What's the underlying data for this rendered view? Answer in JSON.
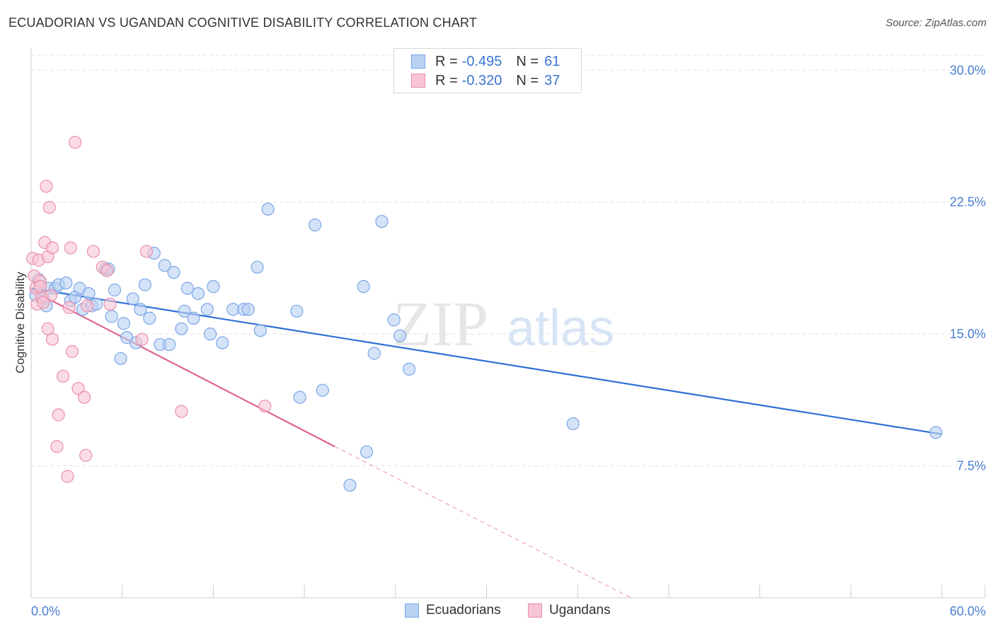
{
  "title": "ECUADORIAN VS UGANDAN COGNITIVE DISABILITY CORRELATION CHART",
  "source": "Source: ZipAtlas.com",
  "watermark": {
    "zip": "ZIP",
    "atlas": "atlas"
  },
  "legend": {
    "series1": {
      "r_label": "R =",
      "r_value": "-0.495",
      "n_label": "N =",
      "n_value": "61"
    },
    "series2": {
      "r_label": "R =",
      "r_value": "-0.320",
      "n_label": "N =",
      "n_value": "37"
    }
  },
  "bottom_legend": {
    "ecuadorians": "Ecuadorians",
    "ugandans": "Ugandans"
  },
  "colors": {
    "blue_fill": "#b9d1f3",
    "blue_stroke": "#7ba6e6",
    "blue_line": "#2e6fd6",
    "pink_fill": "#f8c4d3",
    "pink_stroke": "#ea8fab",
    "pink_line": "#e0638f",
    "grid": "#e3e3e3",
    "tick_text": "#4a7fd0"
  },
  "chart_data": {
    "type": "scatter",
    "title": "ECUADORIAN VS UGANDAN COGNITIVE DISABILITY CORRELATION CHART",
    "xlabel": "",
    "ylabel": "Cognitive Disability",
    "xlim": [
      0,
      60
    ],
    "ylim": [
      0,
      31.5
    ],
    "x_tick_labels": [
      "0.0%",
      "60.0%"
    ],
    "y_ticks": [
      7.5,
      15.0,
      22.5,
      30.0
    ],
    "y_tick_labels": [
      "7.5%",
      "15.0%",
      "22.5%",
      "30.0%"
    ],
    "series": [
      {
        "name": "Ecuadorians",
        "r": -0.495,
        "n": 61,
        "trend": {
          "x0": 0.0,
          "y0": 17.6,
          "x1": 60.0,
          "y1": 9.3
        },
        "points": [
          [
            0.3,
            17.2
          ],
          [
            0.5,
            18.1
          ],
          [
            0.8,
            17.0
          ],
          [
            1.0,
            16.6
          ],
          [
            1.2,
            17.6
          ],
          [
            1.6,
            17.6
          ],
          [
            1.8,
            17.8
          ],
          [
            2.3,
            17.9
          ],
          [
            2.6,
            16.9
          ],
          [
            2.9,
            17.1
          ],
          [
            3.2,
            17.6
          ],
          [
            3.4,
            16.4
          ],
          [
            3.8,
            17.3
          ],
          [
            4.0,
            16.6
          ],
          [
            4.3,
            16.7
          ],
          [
            4.9,
            18.7
          ],
          [
            5.1,
            18.7
          ],
          [
            5.3,
            16.0
          ],
          [
            5.5,
            17.5
          ],
          [
            5.9,
            13.6
          ],
          [
            6.1,
            15.6
          ],
          [
            6.3,
            14.8
          ],
          [
            6.7,
            17.0
          ],
          [
            6.9,
            14.5
          ],
          [
            7.2,
            16.4
          ],
          [
            7.5,
            17.8
          ],
          [
            7.8,
            15.9
          ],
          [
            8.1,
            19.6
          ],
          [
            8.5,
            14.4
          ],
          [
            8.8,
            18.9
          ],
          [
            9.1,
            14.4
          ],
          [
            9.4,
            18.5
          ],
          [
            9.9,
            15.3
          ],
          [
            10.1,
            16.3
          ],
          [
            10.3,
            17.6
          ],
          [
            10.7,
            15.9
          ],
          [
            11.0,
            17.3
          ],
          [
            11.6,
            16.4
          ],
          [
            11.8,
            15.0
          ],
          [
            12.0,
            17.7
          ],
          [
            12.6,
            14.5
          ],
          [
            13.3,
            16.4
          ],
          [
            14.0,
            16.4
          ],
          [
            14.3,
            16.4
          ],
          [
            14.9,
            18.8
          ],
          [
            15.1,
            15.2
          ],
          [
            15.6,
            22.1
          ],
          [
            17.5,
            16.3
          ],
          [
            17.7,
            11.4
          ],
          [
            18.7,
            21.2
          ],
          [
            19.2,
            11.8
          ],
          [
            21.0,
            6.4
          ],
          [
            21.9,
            17.7
          ],
          [
            22.1,
            8.3
          ],
          [
            22.6,
            13.9
          ],
          [
            23.1,
            21.4
          ],
          [
            23.9,
            15.8
          ],
          [
            24.3,
            14.9
          ],
          [
            24.9,
            13.0
          ],
          [
            35.7,
            9.9
          ],
          [
            59.6,
            9.4
          ]
        ]
      },
      {
        "name": "Ugandans",
        "r": -0.32,
        "n": 37,
        "trend": {
          "x0": 0.0,
          "y0": 17.5,
          "x1": 20.0,
          "y1": 8.6,
          "dash_x1": 39.5,
          "dash_y1": 0.0
        },
        "points": [
          [
            0.1,
            19.3
          ],
          [
            0.2,
            18.3
          ],
          [
            0.3,
            17.6
          ],
          [
            0.4,
            16.7
          ],
          [
            0.5,
            19.2
          ],
          [
            0.6,
            18.0
          ],
          [
            0.7,
            17.1
          ],
          [
            0.9,
            20.2
          ],
          [
            1.0,
            23.4
          ],
          [
            1.1,
            15.3
          ],
          [
            1.1,
            19.4
          ],
          [
            1.2,
            22.2
          ],
          [
            1.3,
            17.2
          ],
          [
            1.4,
            14.7
          ],
          [
            1.4,
            19.9
          ],
          [
            1.8,
            10.4
          ],
          [
            2.1,
            12.6
          ],
          [
            2.4,
            6.9
          ],
          [
            2.5,
            16.5
          ],
          [
            2.6,
            19.9
          ],
          [
            2.7,
            14.0
          ],
          [
            2.9,
            25.9
          ],
          [
            3.1,
            11.9
          ],
          [
            3.5,
            11.4
          ],
          [
            3.6,
            8.1
          ],
          [
            3.7,
            16.6
          ],
          [
            4.1,
            19.7
          ],
          [
            4.7,
            18.8
          ],
          [
            5.0,
            18.6
          ],
          [
            5.2,
            16.7
          ],
          [
            7.3,
            14.7
          ],
          [
            7.6,
            19.7
          ],
          [
            9.9,
            10.6
          ],
          [
            15.4,
            10.9
          ],
          [
            0.6,
            17.7
          ],
          [
            0.8,
            16.8
          ],
          [
            1.7,
            8.6
          ]
        ]
      }
    ]
  }
}
